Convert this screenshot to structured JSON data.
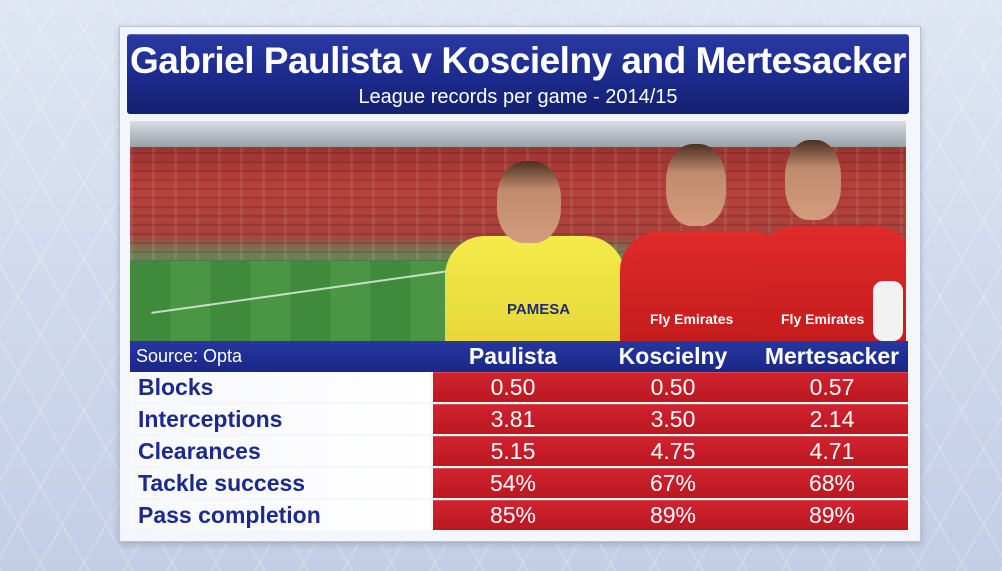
{
  "header": {
    "title": "Gabriel Paulista v Koscielny and Mertesacker",
    "subtitle": "League records per game - 2014/15"
  },
  "photo": {
    "players": [
      "Paulista",
      "Koscielny",
      "Mertesacker"
    ],
    "shirt_texts": {
      "paulista": "PAMESA",
      "arsenal": "Fly Emirates"
    }
  },
  "table": {
    "source": "Source: Opta",
    "columns": [
      "Paulista",
      "Koscielny",
      "Mertesacker"
    ],
    "rows": [
      {
        "label": "Blocks",
        "values": [
          "0.50",
          "0.50",
          "0.57"
        ]
      },
      {
        "label": "Interceptions",
        "values": [
          "3.81",
          "3.50",
          "2.14"
        ]
      },
      {
        "label": "Clearances",
        "values": [
          "5.15",
          "4.75",
          "4.71"
        ]
      },
      {
        "label": "Tackle success",
        "values": [
          "54%",
          "67%",
          "68%"
        ]
      },
      {
        "label": "Pass completion",
        "values": [
          "85%",
          "89%",
          "89%"
        ]
      }
    ]
  },
  "colors": {
    "header_blue": "#1c2a8c",
    "value_red": "#c51c24",
    "label_text": "#1c2a8c"
  }
}
